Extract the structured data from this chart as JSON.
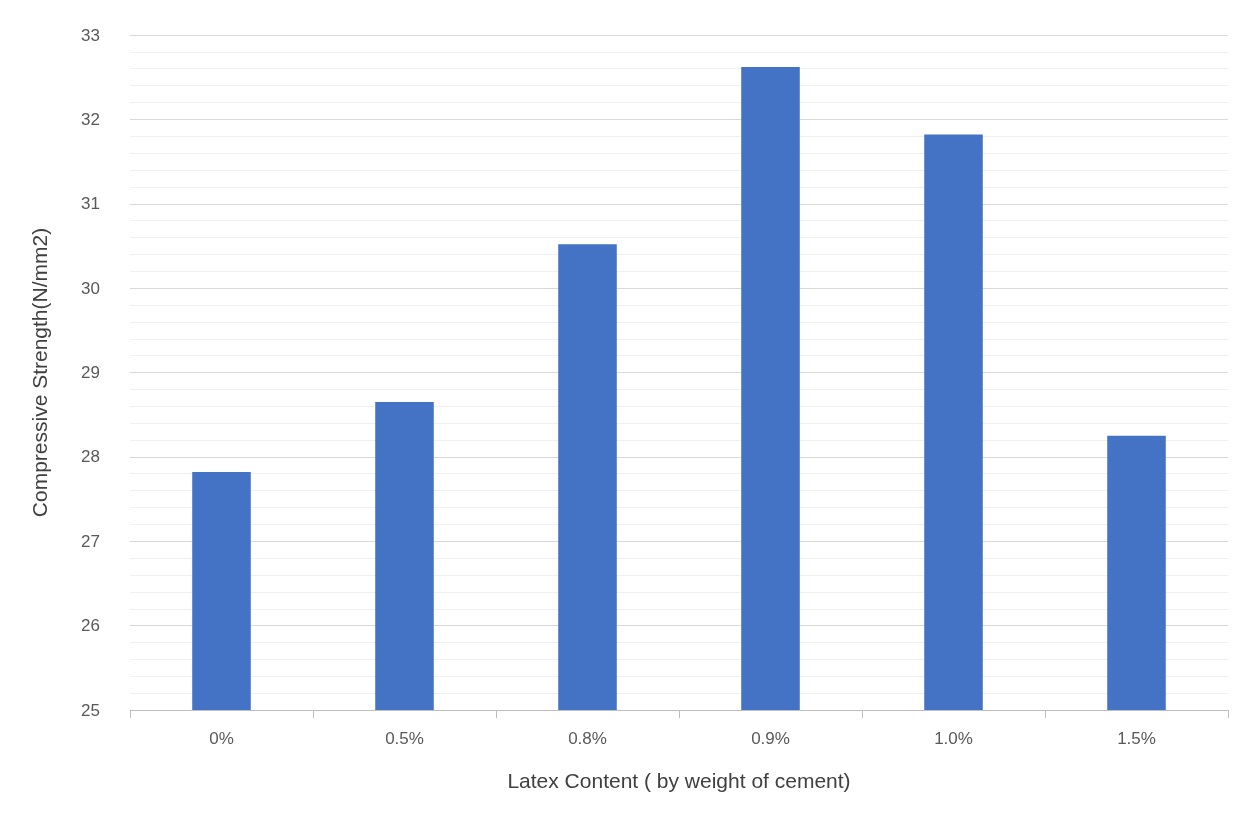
{
  "chart_data": {
    "type": "bar",
    "xlabel": "Latex Content ( by weight of cement)",
    "ylabel": "Compressive Strength(N/mm2)",
    "categories": [
      "0%",
      "0.5%",
      "0.8%",
      "0.9%",
      "1.0%",
      "1.5%"
    ],
    "values": [
      27.82,
      28.65,
      30.52,
      32.62,
      31.82,
      28.25
    ],
    "color": "#4472c4",
    "ylim": [
      25,
      33
    ],
    "yticks": [
      25,
      26,
      27,
      28,
      29,
      30,
      31,
      32,
      33
    ],
    "grid": "y"
  }
}
